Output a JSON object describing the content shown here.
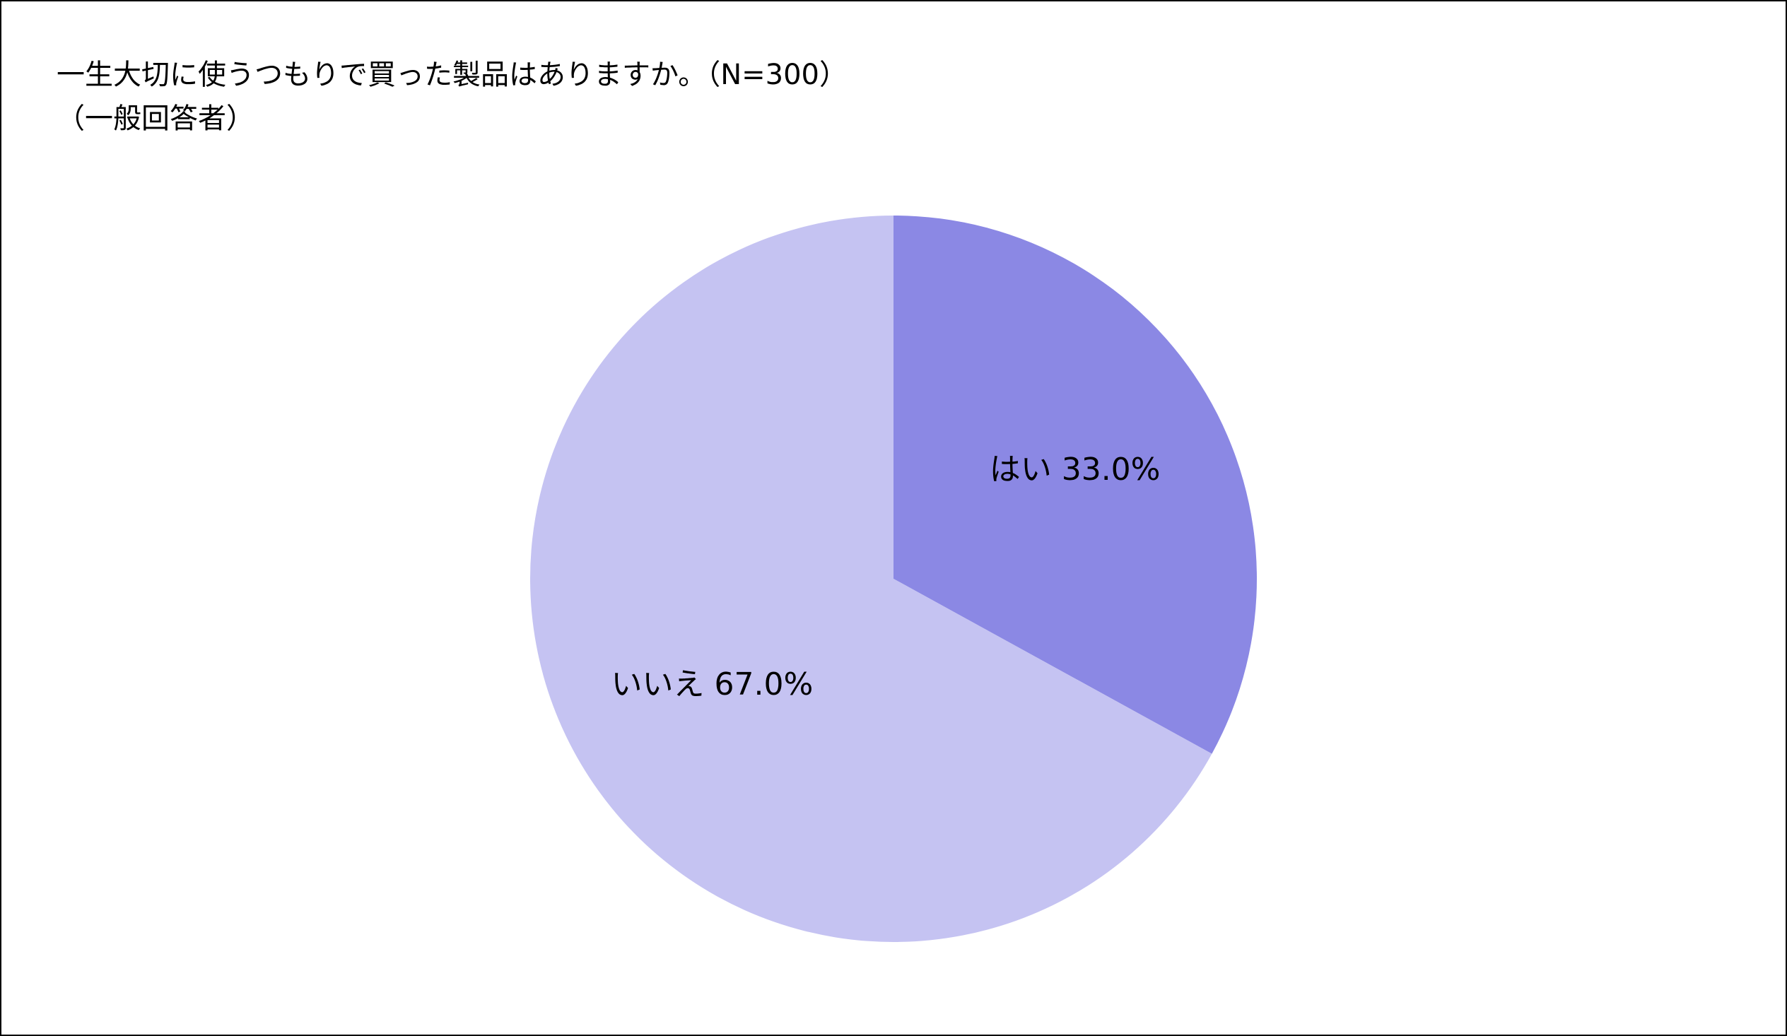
{
  "chart_data": {
    "type": "pie",
    "title": "一生大切に使うつもりで買った製品はありますか。（N=300）",
    "subtitle": "（一般回答者）",
    "categories": [
      "はい",
      "いいえ"
    ],
    "values": [
      33.0,
      67.0
    ],
    "value_labels": [
      "33.0%",
      "67.0%"
    ],
    "colors": [
      "#8b88e4",
      "#c5c3f2"
    ]
  }
}
